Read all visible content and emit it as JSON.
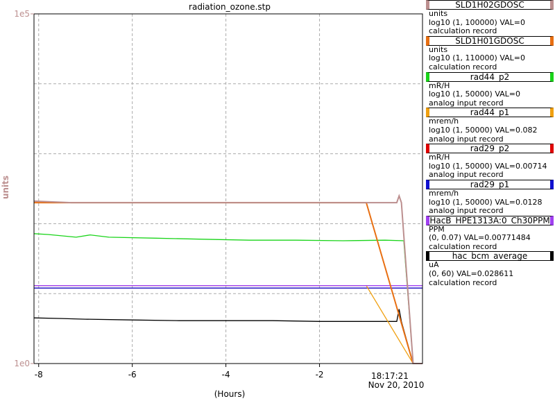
{
  "chart_data": {
    "type": "line",
    "title": "radiation_ozone.stp",
    "xlabel": "(Hours)",
    "ylabel": "units",
    "yscale": "log",
    "ylim": [
      1,
      100000
    ],
    "ytick_labels": [
      "1e5",
      "1e0"
    ],
    "xlim": [
      -8.1,
      0.2
    ],
    "xticks": [
      -8,
      -6,
      -4,
      -2
    ],
    "timestamp_time": "18:17:21",
    "timestamp_date": "Nov 20, 2010",
    "grid": true,
    "legend_placement": "right",
    "series": [
      {
        "name": "SLD1H02GDOSC",
        "color": "#bc8f8f",
        "units": "units",
        "range": "log10 (1, 100000) VAL=0",
        "rtype": "calculation record",
        "x": [
          -8.1,
          -7.3,
          -6.8,
          -5.5,
          -3.3,
          -1.7,
          -0.35,
          -0.3,
          -0.25,
          0.0,
          0.2
        ],
        "y": [
          210,
          200,
          200,
          200,
          200,
          200,
          200,
          250,
          200,
          1,
          1
        ]
      },
      {
        "name": "SLD1H01GDOSC",
        "color": "#e86f12",
        "units": "units",
        "range": "log10 (1, 110000) VAL=0",
        "rtype": "calculation record",
        "x": [
          -8.1,
          -7.0,
          -6.0,
          -5.0,
          -4.0,
          -3.0,
          -2.0,
          -1.0,
          0.0,
          0.2
        ],
        "y": [
          200,
          200,
          200,
          200,
          200,
          200,
          200,
          200,
          1,
          1
        ]
      },
      {
        "name": "rad44_p2",
        "color": "#19d419",
        "units": "mR/H",
        "range": "log10 (1, 50000) VAL=0",
        "rtype": "analog input record",
        "x": [
          -8.1,
          -7.8,
          -7.2,
          -6.9,
          -6.5,
          -5.5,
          -4.5,
          -3.5,
          -2.5,
          -1.5,
          -0.6,
          -0.2,
          0.0,
          0.2
        ],
        "y": [
          72,
          70,
          64,
          69,
          64,
          62,
          60,
          58,
          58,
          57,
          58,
          57,
          1,
          1
        ]
      },
      {
        "name": "rad44_p1",
        "color": "#f0a010",
        "units": "mrem/h",
        "range": "log10 (1, 50000) VAL=0.082",
        "rtype": "analog input record",
        "x": [
          -8.1,
          -7.0,
          -6.0,
          -5.0,
          -4.0,
          -3.0,
          -2.0,
          -1.0,
          0.0,
          0.2
        ],
        "y": [
          13,
          13,
          13,
          13,
          13,
          13,
          13,
          13,
          1,
          1
        ]
      },
      {
        "name": "rad29_p2",
        "color": "#e00000",
        "units": "mR/H",
        "range": "log10 (1, 50000) VAL=0.00714",
        "rtype": "analog input record",
        "x": [
          -8.1,
          -4.0,
          0.0,
          0.2
        ],
        "y": [
          12,
          12,
          12,
          12
        ]
      },
      {
        "name": "rad29_p1",
        "color": "#1010d0",
        "units": "mrem/h",
        "range": "log10 (1, 50000) VAL=0.0128",
        "rtype": "analog input record",
        "x": [
          -8.1,
          -4.0,
          0.0,
          0.2
        ],
        "y": [
          12,
          12,
          12,
          12
        ]
      },
      {
        "name": "HacB_HPE1313A:0_Ch30PPM",
        "color": "#a040f0",
        "units": "PPM",
        "range": "(0, 0.07) VAL=0.00771484",
        "rtype": "calculation record",
        "x": [
          -8.1,
          -7.0,
          -6.0,
          -5.0,
          -4.0,
          -3.0,
          -2.0,
          -1.0,
          0.2
        ],
        "y": [
          13,
          13,
          13,
          13,
          13,
          13,
          13,
          13,
          13
        ]
      },
      {
        "name": "hac_bcm_average",
        "color": "#000000",
        "units": "uA",
        "range": "(0, 60) VAL=0.028611",
        "rtype": "calculation record",
        "x": [
          -8.1,
          -7.5,
          -7.0,
          -6.0,
          -5.0,
          -4.0,
          -3.0,
          -2.0,
          -1.0,
          -0.35,
          -0.3,
          -0.25,
          0.0,
          0.2
        ],
        "y": [
          4.5,
          4.4,
          4.3,
          4.2,
          4.1,
          4.1,
          4.1,
          4.0,
          4.0,
          4.0,
          6.0,
          4.0,
          1,
          1
        ]
      }
    ]
  }
}
